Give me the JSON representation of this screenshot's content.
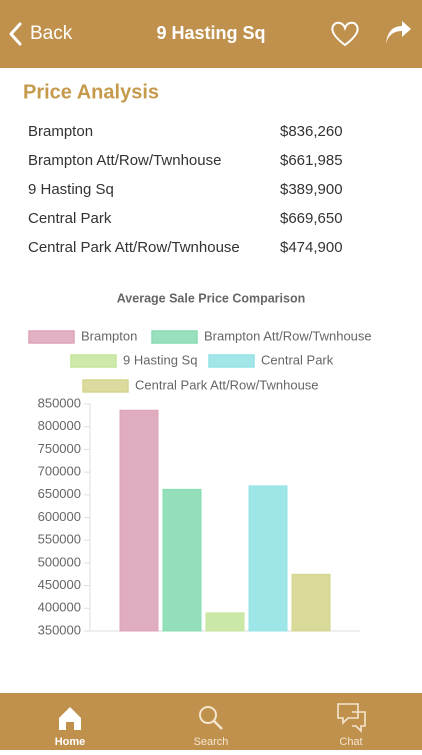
{
  "header": {
    "back": "Back",
    "title": "9 Hasting Sq"
  },
  "price_analysis": {
    "title": "Price Analysis",
    "rows": [
      [
        "Brampton",
        "$836,260"
      ],
      [
        "Brampton Att/Row/Twnhouse",
        "$661,985"
      ],
      [
        "9 Hasting Sq",
        "$389,900"
      ],
      [
        "Central Park",
        "$669,650"
      ],
      [
        "Central Park Att/Row/Twnhouse",
        "$474,900"
      ]
    ]
  },
  "chart_data": {
    "type": "bar",
    "title": "Average Sale Price Comparison",
    "series": [
      {
        "name": "Brampton",
        "color": "#dda3b9",
        "values": [
          836260
        ]
      },
      {
        "name": "Brampton Att/Row/Twnhouse",
        "color": "#87dbb2",
        "values": [
          661985
        ]
      },
      {
        "name": "9 Hasting Sq",
        "color": "#c6e69c",
        "values": [
          389900
        ]
      },
      {
        "name": "Central Park",
        "color": "#93e2e6",
        "values": [
          669650
        ]
      },
      {
        "name": "Central Park Att/Row/Twnhouse",
        "color": "#d5d58e",
        "values": [
          474900
        ]
      }
    ],
    "ylim": [
      350000,
      850000
    ],
    "yticks": [
      350000,
      400000,
      450000,
      500000,
      550000,
      600000,
      650000,
      700000,
      750000,
      800000,
      850000
    ],
    "grid": false
  },
  "tabs": [
    "Home",
    "Search",
    "Chat"
  ]
}
